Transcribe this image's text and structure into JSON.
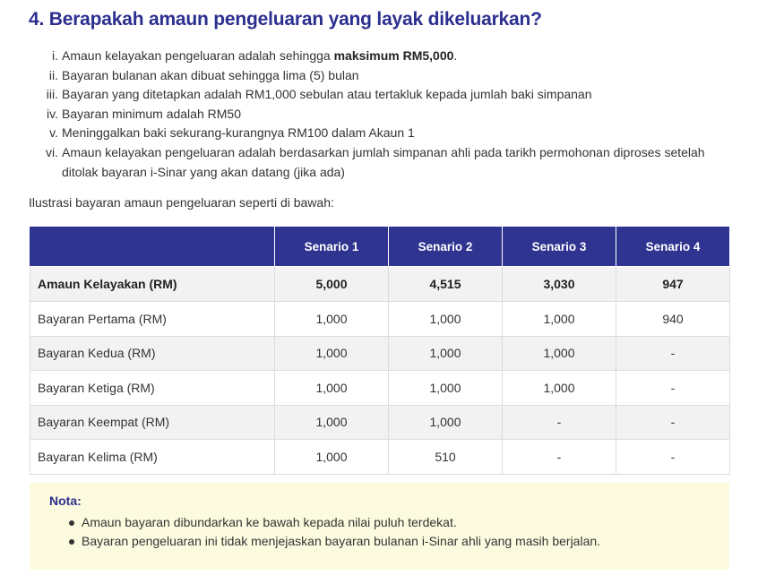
{
  "heading": "4. Berapakah amaun pengeluaran yang layak dikeluarkan?",
  "requirements": [
    {
      "num": "i.",
      "text": "Amaun kelayakan pengeluaran adalah sehingga ",
      "bold": "maksimum RM5,000",
      "after": "."
    },
    {
      "num": "ii.",
      "text": "Bayaran bulanan akan dibuat sehingga lima (5) bulan",
      "bold": "",
      "after": ""
    },
    {
      "num": "iii.",
      "text": "Bayaran yang ditetapkan adalah RM1,000 sebulan atau tertakluk kepada jumlah baki simpanan",
      "bold": "",
      "after": ""
    },
    {
      "num": "iv.",
      "text": "Bayaran minimum adalah RM50",
      "bold": "",
      "after": ""
    },
    {
      "num": "v.",
      "text": "Meninggalkan baki sekurang-kurangnya RM100 dalam Akaun 1",
      "bold": "",
      "after": ""
    },
    {
      "num": "vi.",
      "text": "Amaun kelayakan pengeluaran adalah berdasarkan jumlah simpanan ahli pada tarikh permohonan diproses setelah ditolak bayaran i-Sinar yang akan datang (jika ada)",
      "bold": "",
      "after": ""
    }
  ],
  "intro": "Ilustrasi bayaran amaun pengeluaran seperti di bawah:",
  "table": {
    "headers": [
      "",
      "Senario 1",
      "Senario 2",
      "Senario 3",
      "Senario 4"
    ],
    "rows": [
      {
        "label": "Amaun Kelayakan (RM)",
        "values": [
          "5,000",
          "4,515",
          "3,030",
          "947"
        ],
        "bold": true
      },
      {
        "label": "Bayaran Pertama (RM)",
        "values": [
          "1,000",
          "1,000",
          "1,000",
          "940"
        ],
        "bold": false
      },
      {
        "label": "Bayaran Kedua (RM)",
        "values": [
          "1,000",
          "1,000",
          "1,000",
          "-"
        ],
        "bold": false
      },
      {
        "label": "Bayaran Ketiga (RM)",
        "values": [
          "1,000",
          "1,000",
          "1,000",
          "-"
        ],
        "bold": false
      },
      {
        "label": "Bayaran Keempat (RM)",
        "values": [
          "1,000",
          "1,000",
          "-",
          "-"
        ],
        "bold": false
      },
      {
        "label": "Bayaran Kelima (RM)",
        "values": [
          "1,000",
          "510",
          "-",
          "-"
        ],
        "bold": false
      }
    ]
  },
  "note": {
    "title": "Nota:",
    "items": [
      "Amaun bayaran dibundarkan ke bawah kepada nilai puluh terdekat.",
      "Bayaran pengeluaran ini tidak menjejaskan bayaran bulanan i-Sinar ahli yang masih berjalan."
    ]
  },
  "colors": {
    "heading": "#2b2f8f",
    "table_header_bg": "#2f3490",
    "row_alt_bg": "#f2f2f2",
    "note_bg": "#fdfbdf"
  }
}
